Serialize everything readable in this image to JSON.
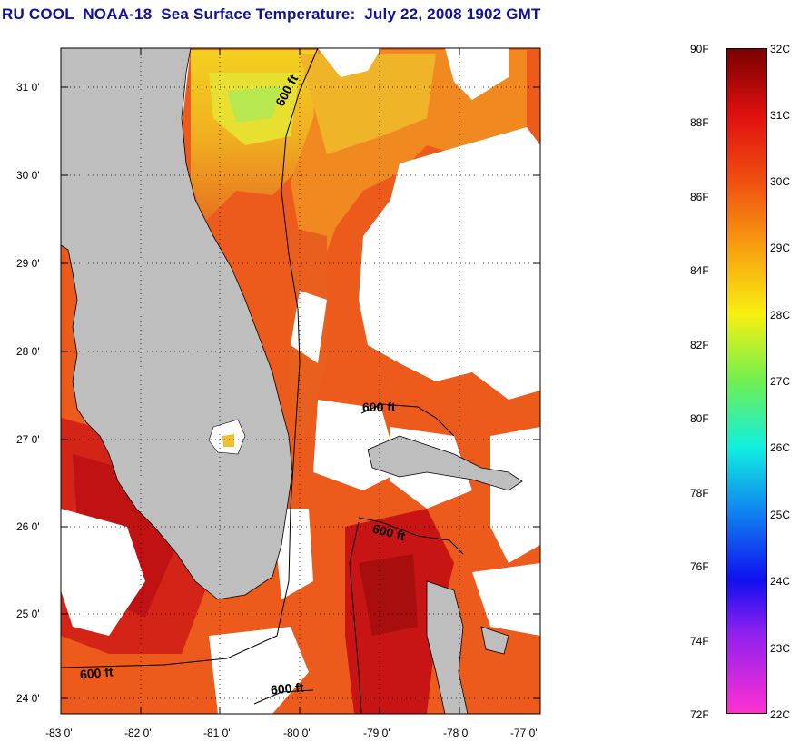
{
  "title": "RU COOL  NOAA-18  Sea Surface Temperature:  July 22, 2008 1902 GMT",
  "lat_labels": [
    "31 0'",
    "30 0'",
    "29 0'",
    "28 0'",
    "27 0'",
    "26 0'",
    "25 0'",
    "24 0'"
  ],
  "lon_labels": [
    "-83 0'",
    "-82 0'",
    "-81 0'",
    "-80 0'",
    "-79 0'",
    "-78 0'",
    "-77 0'"
  ],
  "colorbar": {
    "fahrenheit": [
      "90F",
      "88F",
      "86F",
      "84F",
      "82F",
      "80F",
      "78F",
      "76F",
      "74F",
      "72F"
    ],
    "celsius": [
      "32C",
      "31C",
      "30C",
      "29C",
      "28C",
      "27C",
      "26C",
      "25C",
      "24C",
      "23C",
      "22C"
    ]
  },
  "contour_labels": [
    "600 ft",
    "600 ft",
    "600 ft",
    "600 ft",
    "600 ft"
  ],
  "colors": {
    "title": "#1010a0",
    "land": "#bebebe",
    "cloud": "#ffffff",
    "sst_warm": "#e8401a",
    "sst_hot": "#c81010",
    "sst_cool": "#f0d020"
  }
}
